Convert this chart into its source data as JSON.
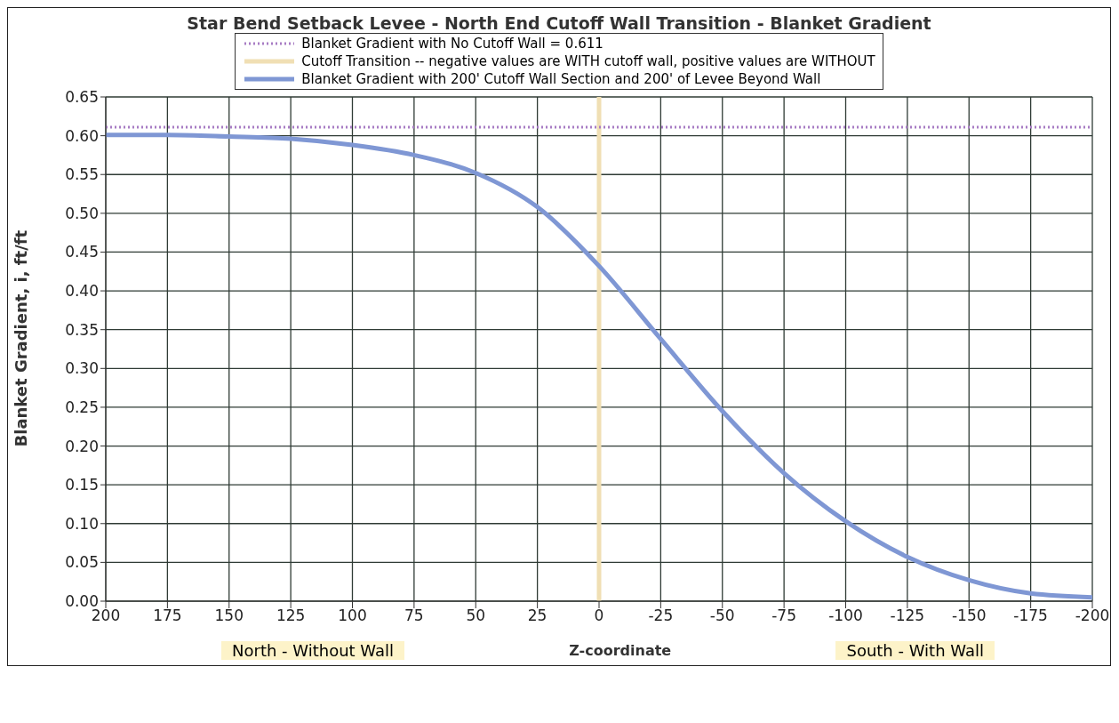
{
  "chart_data": {
    "type": "line",
    "title": "Star Bend Setback Levee - North End Cutoff Wall Transition - Blanket Gradient",
    "xlabel": "Z-coordinate",
    "ylabel": "Blanket Gradient, i, ft/ft",
    "xlim": [
      200,
      -200
    ],
    "xticks": [
      200,
      175,
      150,
      125,
      100,
      75,
      50,
      25,
      0,
      -25,
      -50,
      -75,
      -100,
      -125,
      -150,
      -175,
      -200
    ],
    "ylim": [
      0,
      0.65
    ],
    "yticks": [
      {
        "value": 0,
        "label": "0.00"
      },
      {
        "value": 0.05,
        "label": "0.05"
      },
      {
        "value": 0.1,
        "label": "0.10"
      },
      {
        "value": 0.15,
        "label": "0.15"
      },
      {
        "value": 0.2,
        "label": "0.20"
      },
      {
        "value": 0.25,
        "label": "0.25"
      },
      {
        "value": 0.3,
        "label": "0.30"
      },
      {
        "value": 0.35,
        "label": "0.35"
      },
      {
        "value": 0.4,
        "label": "0.40"
      },
      {
        "value": 0.45,
        "label": "0.45"
      },
      {
        "value": 0.5,
        "label": "0.50"
      },
      {
        "value": 0.55,
        "label": "0.55"
      },
      {
        "value": 0.6,
        "label": "0.60"
      },
      {
        "value": 0.65,
        "label": "0.65"
      }
    ],
    "grid": true,
    "legend": "top",
    "marker": "none",
    "line_style": "solid",
    "ref_lines": [
      {
        "axis": "y",
        "value": 0.611,
        "label": "Blanket Gradient with No Cutoff Wall = 0.611",
        "color": "#a77cc4",
        "line_style": "dotted"
      }
    ],
    "series": [
      {
        "name": "Cutoff Transition -- negative values are WITH cutoff wall, positive values are WITHOUT",
        "color": "#f0dfb4",
        "x": [
          0,
          0
        ],
        "values": [
          0,
          0.65
        ]
      },
      {
        "name": "Blanket Gradient with 200' Cutoff Wall Section and 200' of Levee Beyond Wall",
        "color": "#7f97d4",
        "x": [
          200,
          175,
          150,
          125,
          100,
          75,
          50,
          25,
          0,
          -25,
          -50,
          -75,
          -100,
          -125,
          -150,
          -175,
          -200
        ],
        "values": [
          0.601,
          0.601,
          0.599,
          0.596,
          0.588,
          0.575,
          0.552,
          0.508,
          0.432,
          0.338,
          0.245,
          0.165,
          0.103,
          0.057,
          0.027,
          0.01,
          0.005
        ]
      }
    ],
    "annotations": [
      "North - Without Wall",
      "South - With Wall"
    ]
  }
}
